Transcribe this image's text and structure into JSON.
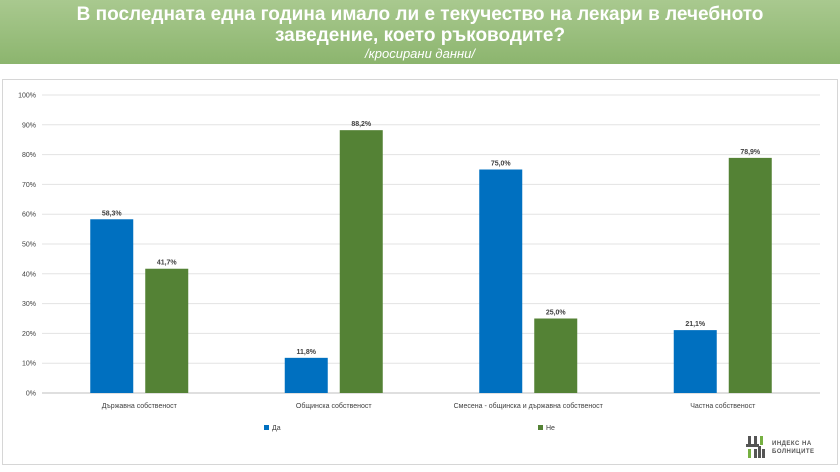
{
  "header": {
    "title_line1": "В последната една година имало ли е текучество на лекари в лечебното",
    "title_line2": "заведение, което ръководите?",
    "subtitle": "/кросирани данни/"
  },
  "logo": {
    "line1": "ИНДЕКС НА",
    "line2": "БОЛНИЦИТЕ"
  },
  "colors": {
    "header_bg": "#8cb56e",
    "series_da": "#0070c0",
    "series_ne": "#548235"
  },
  "chart_data": {
    "type": "bar",
    "categories": [
      "Държавна собственост",
      "Общинска собственост",
      "Смесена - общинска и държавна собственост",
      "Частна собственост"
    ],
    "series": [
      {
        "name": "Да",
        "values": [
          58.3,
          11.8,
          75.0,
          21.1
        ],
        "labels": [
          "58,3%",
          "11,8%",
          "75,0%",
          "21,1%"
        ],
        "color": "#0070c0"
      },
      {
        "name": "Не",
        "values": [
          41.7,
          88.2,
          25.0,
          78.9
        ],
        "labels": [
          "41,7%",
          "88,2%",
          "25,0%",
          "78,9%"
        ],
        "color": "#548235"
      }
    ],
    "ylim": [
      0,
      100
    ],
    "yticks": [
      "0%",
      "10%",
      "20%",
      "30%",
      "40%",
      "50%",
      "60%",
      "70%",
      "80%",
      "90%",
      "100%"
    ],
    "grid": true,
    "legend": "bottom"
  }
}
